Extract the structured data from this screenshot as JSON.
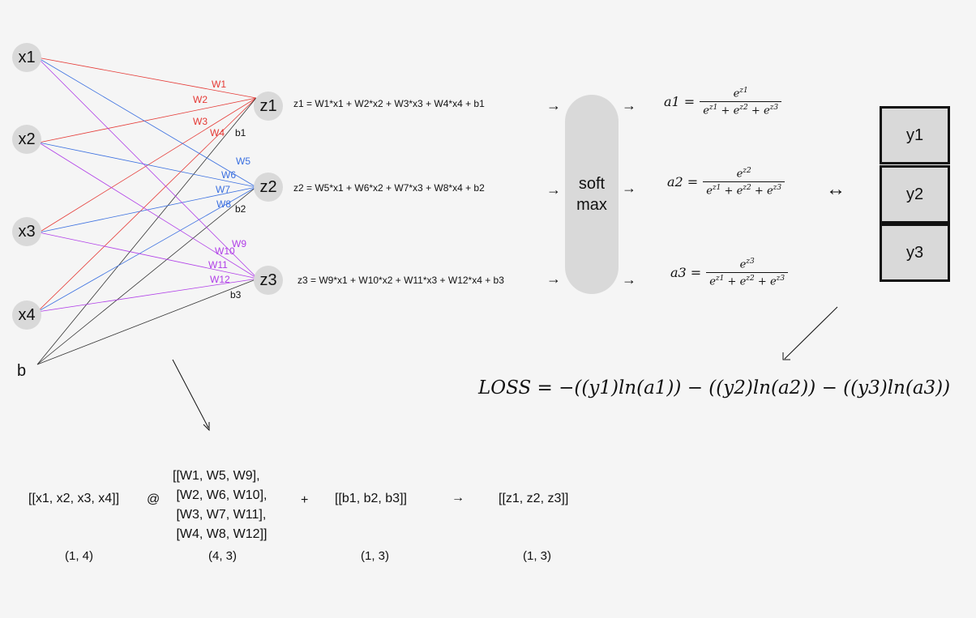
{
  "inputs": [
    "x1",
    "x2",
    "x3",
    "x4"
  ],
  "bias_input": "b",
  "outputs": [
    "z1",
    "z2",
    "z3"
  ],
  "weight_labels": [
    "W1",
    "W2",
    "W3",
    "W4",
    "W5",
    "W6",
    "W7",
    "W8",
    "W9",
    "W10",
    "W11",
    "W12"
  ],
  "bias_labels": [
    "b1",
    "b2",
    "b3"
  ],
  "colors": {
    "z1_edges": "#e53935",
    "z2_edges": "#3a6fe0",
    "z3_edges": "#b03ee8",
    "bias_edges": "#333333",
    "node_fill": "#d9d9d9",
    "background": "#f5f5f5"
  },
  "z_equations": [
    "z1 = W1*x1 + W2*x2 + W3*x3 + W4*x4 + b1",
    "z2 = W5*x1 + W6*x2 + W7*x3 + W8*x4 + b2",
    "z3 = W9*x1 + W10*x2 + W11*x3 + W12*x4 + b3"
  ],
  "arrow_right": "→",
  "softmax_label": [
    "soft",
    "max"
  ],
  "activation_equations": [
    {
      "lhs": "a1 =",
      "num": "e",
      "num_sup": "z1",
      "den": [
        {
          "b": "e",
          "s": "z1"
        },
        {
          "b": "e",
          "s": "z2"
        },
        {
          "b": "e",
          "s": "z3"
        }
      ]
    },
    {
      "lhs": "a2 =",
      "num": "e",
      "num_sup": "z2",
      "den": [
        {
          "b": "e",
          "s": "z1"
        },
        {
          "b": "e",
          "s": "z2"
        },
        {
          "b": "e",
          "s": "z3"
        }
      ]
    },
    {
      "lhs": "a3 =",
      "num": "e",
      "num_sup": "z3",
      "den": [
        {
          "b": "e",
          "s": "z1"
        },
        {
          "b": "e",
          "s": "z2"
        },
        {
          "b": "e",
          "s": "z3"
        }
      ]
    }
  ],
  "plus": "+",
  "double_arrow": "↔",
  "targets": [
    "y1",
    "y2",
    "y3"
  ],
  "loss": "LOSS = −((y1)ln(a1)) − ((y2)ln(a2)) − ((y3)ln(a3))",
  "matrix_row": {
    "input": "[[x1, x2, x3, x4]]",
    "matmul": "@",
    "weights": "[[W1, W5, W9],\n [W2, W6, W10],\n [W3, W7, W11],\n [W4, W8, W12]]",
    "plus": "+",
    "bias": "[[b1, b2, b3]]",
    "arrow": "→",
    "result": "[[z1, z2, z3]]"
  },
  "shapes": [
    "(1, 4)",
    "(4, 3)",
    "(1, 3)",
    "(1, 3)"
  ]
}
